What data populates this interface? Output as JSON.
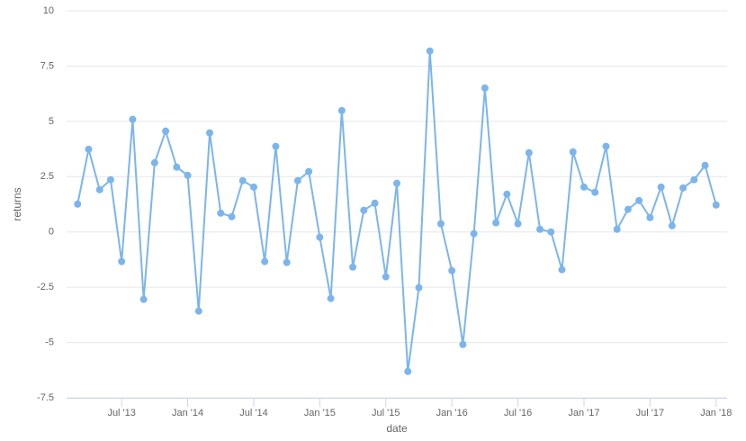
{
  "chart_data": {
    "type": "line",
    "x_label": "date",
    "y_label": "returns",
    "x": [
      "2013-03",
      "2013-04",
      "2013-05",
      "2013-06",
      "2013-07",
      "2013-08",
      "2013-09",
      "2013-10",
      "2013-11",
      "2013-12",
      "2014-01",
      "2014-02",
      "2014-03",
      "2014-04",
      "2014-05",
      "2014-06",
      "2014-07",
      "2014-08",
      "2014-09",
      "2014-10",
      "2014-11",
      "2014-12",
      "2015-01",
      "2015-02",
      "2015-03",
      "2015-04",
      "2015-05",
      "2015-06",
      "2015-07",
      "2015-08",
      "2015-09",
      "2015-10",
      "2015-11",
      "2015-12",
      "2016-01",
      "2016-02",
      "2016-03",
      "2016-04",
      "2016-05",
      "2016-06",
      "2016-07",
      "2016-08",
      "2016-09",
      "2016-10",
      "2016-11",
      "2016-12",
      "2017-01",
      "2017-02",
      "2017-03",
      "2017-04",
      "2017-05",
      "2017-06",
      "2017-07",
      "2017-08",
      "2017-09",
      "2017-10",
      "2017-11",
      "2017-12",
      "2018-01"
    ],
    "series": [
      {
        "name": "returns",
        "color": "#7cb5ec",
        "values": [
          1.26,
          3.74,
          1.91,
          2.36,
          -1.34,
          5.09,
          -3.05,
          3.13,
          4.56,
          2.93,
          2.56,
          -3.58,
          4.48,
          0.85,
          0.69,
          2.32,
          2.03,
          -1.34,
          3.87,
          -1.38,
          2.32,
          2.73,
          -0.24,
          -3.01,
          5.49,
          -1.59,
          0.98,
          1.3,
          -2.03,
          2.2,
          -6.31,
          -2.52,
          8.18,
          0.37,
          -1.75,
          -5.09,
          -0.08,
          6.51,
          0.41,
          1.71,
          0.37,
          3.58,
          0.12,
          0.0,
          -1.71,
          3.62,
          2.03,
          1.79,
          3.87,
          0.12,
          1.02,
          1.42,
          0.65,
          2.03,
          0.28,
          1.99,
          2.36,
          3.01,
          1.22
        ]
      }
    ],
    "xlim": [
      "2013-02",
      "2018-02"
    ],
    "xticks": [
      {
        "value": "2013-07",
        "label": "Jul '13"
      },
      {
        "value": "2014-01",
        "label": "Jan '14"
      },
      {
        "value": "2014-07",
        "label": "Jul '14"
      },
      {
        "value": "2015-01",
        "label": "Jan '15"
      },
      {
        "value": "2015-07",
        "label": "Jul '15"
      },
      {
        "value": "2016-01",
        "label": "Jan '16"
      },
      {
        "value": "2016-07",
        "label": "Jul '16"
      },
      {
        "value": "2017-01",
        "label": "Jan '17"
      },
      {
        "value": "2017-07",
        "label": "Jul '17"
      },
      {
        "value": "2018-01",
        "label": "Jan '18"
      }
    ],
    "ylim": [
      -7.5,
      10
    ],
    "yticks": [
      -7.5,
      -5,
      -2.5,
      0,
      2.5,
      5,
      7.5,
      10
    ],
    "grid": true
  }
}
